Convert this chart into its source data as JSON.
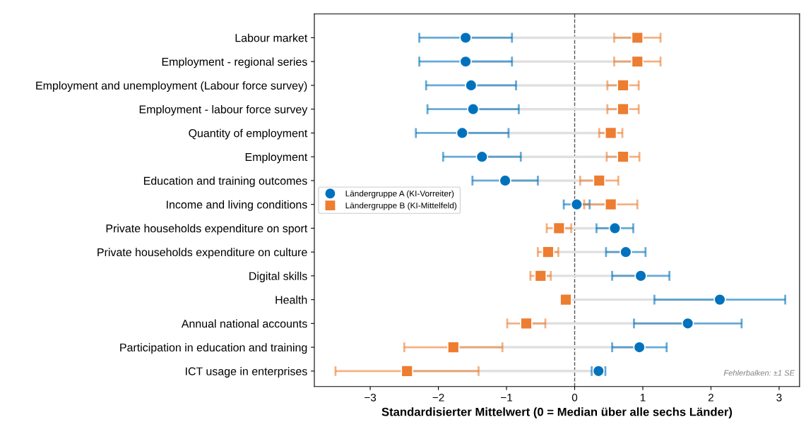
{
  "chart_data": {
    "type": "scatter",
    "orientation": "horizontal",
    "xlabel": "Standardisierter Mittelwert (0 = Median über alle sechs Länder)",
    "categories": [
      "Labour market",
      "Employment - regional series",
      "Employment and unemployment (Labour force survey)",
      "Employment - labour force survey",
      "Quantity of employment",
      "Employment",
      "Education and training outcomes",
      "Income and living conditions",
      "Private households expenditure on sport",
      "Private households expenditure on culture",
      "Digital skills",
      "Health",
      "Annual national accounts",
      "Participation in education and training",
      "ICT usage in enterprises"
    ],
    "series": [
      {
        "name": "Ländergruppe A (KI-Vorreiter)",
        "color": "#0072bd",
        "marker": "circle",
        "values": [
          -1.6,
          -1.6,
          -1.52,
          -1.49,
          -1.65,
          -1.36,
          -1.02,
          0.03,
          0.59,
          0.75,
          0.97,
          2.13,
          1.66,
          0.95,
          0.35
        ],
        "errors": [
          0.68,
          0.68,
          0.66,
          0.67,
          0.68,
          0.57,
          0.48,
          0.19,
          0.27,
          0.29,
          0.42,
          0.96,
          0.79,
          0.4,
          0.1
        ]
      },
      {
        "name": "Ländergruppe B (KI-Mittelfeld)",
        "color": "#ed7d31",
        "marker": "square",
        "values": [
          0.92,
          0.92,
          0.71,
          0.71,
          0.53,
          0.71,
          0.36,
          0.53,
          -0.23,
          -0.39,
          -0.5,
          -0.13,
          -0.71,
          -1.78,
          -2.46
        ],
        "errors": [
          0.34,
          0.34,
          0.23,
          0.23,
          0.17,
          0.24,
          0.28,
          0.39,
          0.18,
          0.15,
          0.15,
          null,
          0.28,
          0.72,
          1.05
        ]
      }
    ],
    "xlim": [
      -3.82,
      3.3
    ],
    "xticks": [
      {
        "value": -3,
        "label": "−3"
      },
      {
        "value": -2,
        "label": "−2"
      },
      {
        "value": -1,
        "label": "−1"
      },
      0,
      1,
      2,
      3
    ],
    "ref_lines": [
      {
        "axis": "x",
        "value": 0,
        "color": "#555555",
        "line_style": "dashed"
      }
    ],
    "annotations": [
      "Fehlerbalken: ±1 SE"
    ],
    "legend": "left",
    "grid": false
  }
}
